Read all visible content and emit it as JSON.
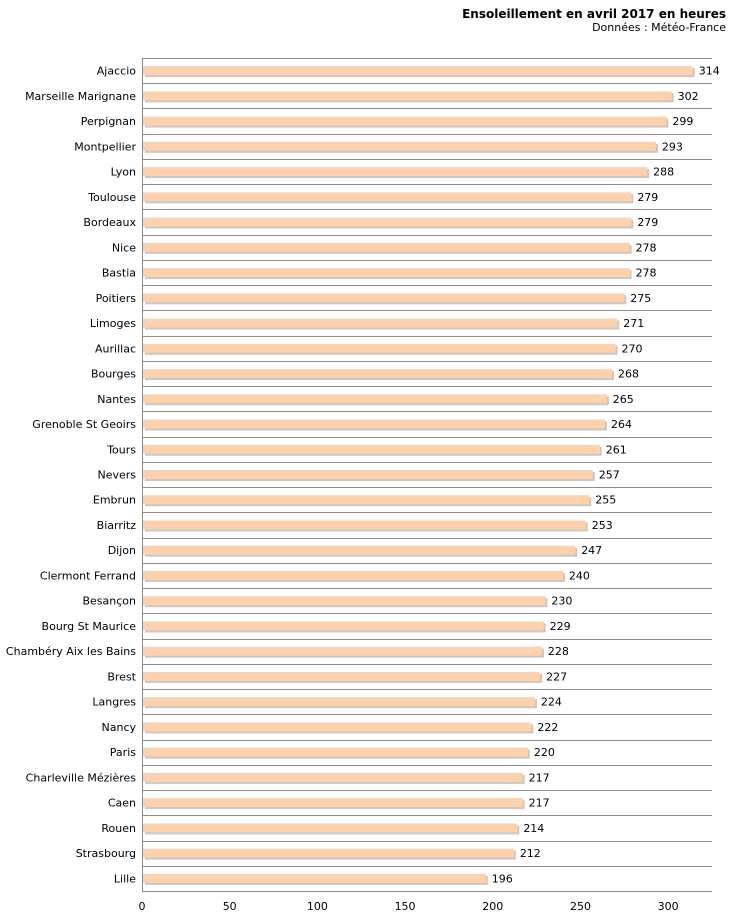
{
  "header": {
    "title": "Ensoleillement en avril 2017 en heures",
    "subtitle": "Données : Météo-France"
  },
  "chart_data": {
    "type": "bar",
    "orientation": "horizontal",
    "title": "Ensoleillement en avril 2017 en heures",
    "subtitle": "Données : Météo-France",
    "xlabel": "",
    "ylabel": "",
    "xlim": [
      0,
      325
    ],
    "xticks": [
      0,
      50,
      100,
      150,
      200,
      250,
      300
    ],
    "grid": true,
    "bar_color": "#fcd2ac",
    "bar_shadow_color": "#c8c8c8",
    "categories": [
      "Ajaccio",
      "Marseille Marignane",
      "Perpignan",
      "Montpellier",
      "Lyon",
      "Toulouse",
      "Bordeaux",
      "Nice",
      "Bastia",
      "Poitiers",
      "Limoges",
      "Aurillac",
      "Bourges",
      "Nantes",
      "Grenoble St Geoirs",
      "Tours",
      "Nevers",
      "Embrun",
      "Biarritz",
      "Dijon",
      "Clermont Ferrand",
      "Besançon",
      "Bourg St Maurice",
      "Chambéry Aix les Bains",
      "Brest",
      "Langres",
      "Nancy",
      "Paris",
      "Charleville Mézières",
      "Caen",
      "Rouen",
      "Strasbourg",
      "Lille"
    ],
    "values": [
      314,
      302,
      299,
      293,
      288,
      279,
      279,
      278,
      278,
      275,
      271,
      270,
      268,
      265,
      264,
      261,
      257,
      255,
      253,
      247,
      240,
      230,
      229,
      228,
      227,
      224,
      222,
      220,
      217,
      217,
      214,
      212,
      196
    ]
  }
}
